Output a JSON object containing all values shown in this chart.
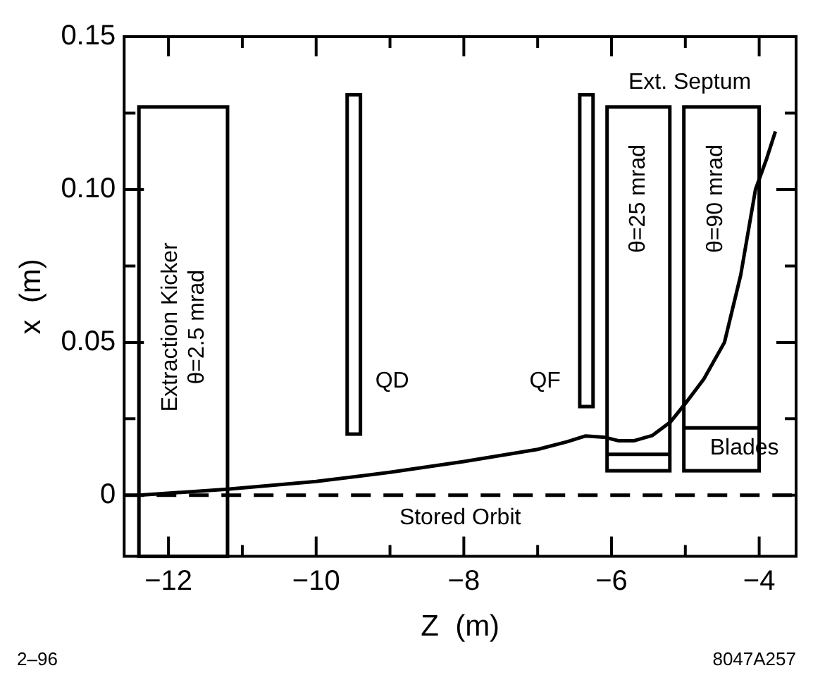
{
  "chart_data": {
    "type": "line",
    "xlabel": "Z  (m)",
    "ylabel": "x  (m)",
    "xlim": [
      -12.6,
      -3.5
    ],
    "ylim": [
      -0.02,
      0.15
    ],
    "xticks": [
      -12,
      {
        "value": -11,
        "label": null
      },
      -10,
      {
        "value": -9,
        "label": null
      },
      -8,
      {
        "value": -7,
        "label": null
      },
      -6,
      {
        "value": -5,
        "label": null
      },
      -4
    ],
    "yticks": [
      0,
      {
        "value": 0.025,
        "label": null
      },
      0.05,
      {
        "value": 0.075,
        "label": null
      },
      {
        "value": 0.1,
        "label": "0.10"
      },
      {
        "value": 0.125,
        "label": null
      },
      0.15
    ],
    "marker": "none",
    "series": [
      {
        "color": "#000000",
        "x": [
          -12.4,
          -11.2,
          -10,
          -9,
          -8,
          -7,
          -6.6,
          -6.35,
          -6.1,
          -5.9,
          -5.7,
          -5.45,
          -5.2,
          -5.0,
          -4.75,
          -4.47,
          -4.25,
          -4.05,
          -3.9,
          -3.78
        ],
        "values": [
          0,
          0.002,
          0.0045,
          0.0075,
          0.011,
          0.015,
          0.0175,
          0.0194,
          0.019,
          0.0178,
          0.0178,
          0.0195,
          0.024,
          0.03,
          0.038,
          0.05,
          0.072,
          0.1,
          0.11,
          0.119
        ]
      }
    ],
    "ref_lines": [
      {
        "axis": "y",
        "value": 0,
        "label": "Stored Orbit",
        "line_style": "dashed",
        "color": "#000000"
      }
    ],
    "annotations": [
      "Extraction Kicker\nθ=2.5 mrad",
      "QD",
      "QF",
      "Ext. Septum",
      "θ=25 mrad",
      "θ=90 mrad",
      "Blades",
      "2–96",
      "8047A257"
    ]
  }
}
